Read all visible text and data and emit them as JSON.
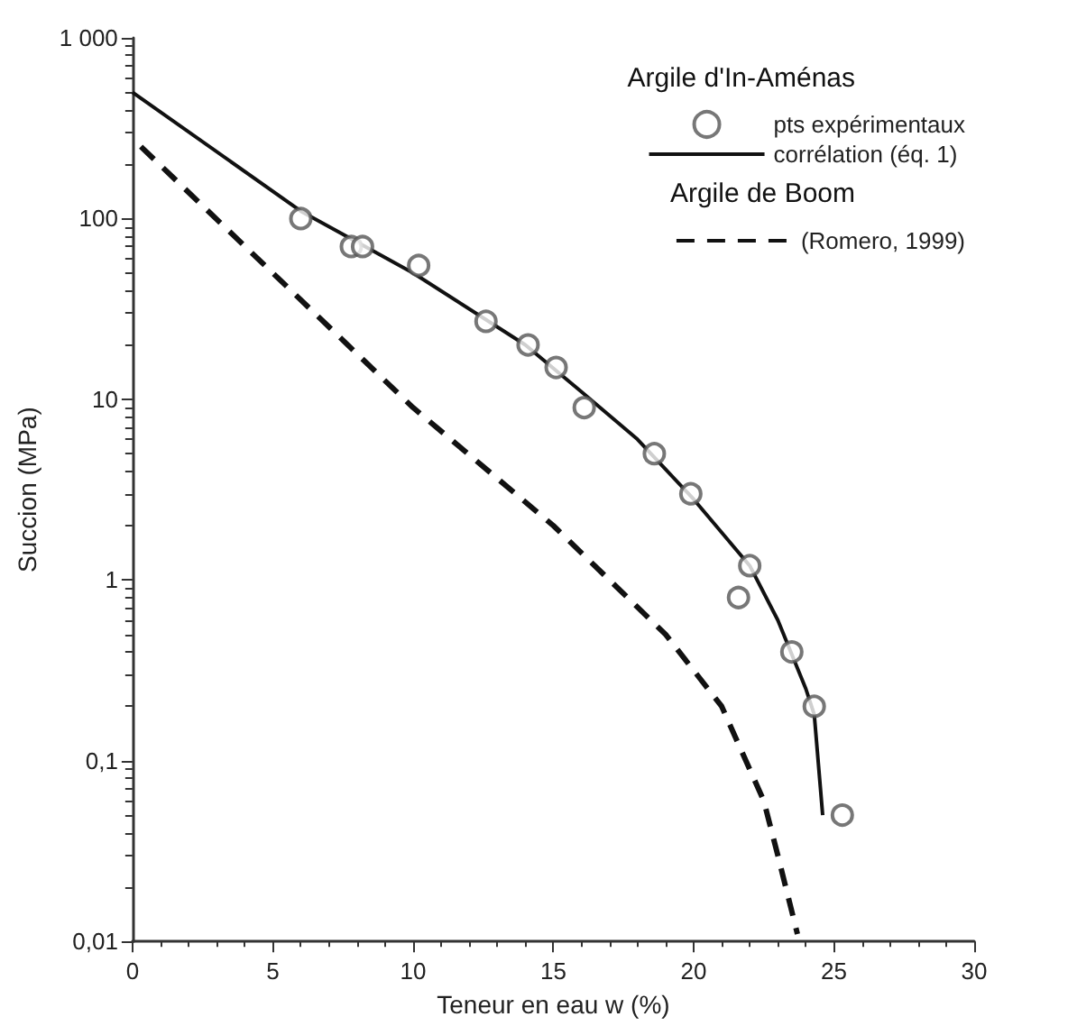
{
  "chart_data": {
    "type": "line",
    "xlabel": "Teneur en eau w (%)",
    "ylabel": "Succion (MPa)",
    "log": "y",
    "xlim": [
      0,
      30
    ],
    "xticks": [
      0,
      5,
      10,
      15,
      20,
      25,
      30
    ],
    "ylim": [
      0.01,
      1000
    ],
    "yticks": [
      {
        "value": 0.01,
        "label": "0,01"
      },
      {
        "value": 0.1,
        "label": "0,1"
      },
      1,
      10,
      100,
      {
        "value": 1000,
        "label": "1 000"
      }
    ],
    "grid": false,
    "legend": "top right",
    "annotations": [
      "Argile d'In-Aménas",
      "Argile de Boom"
    ],
    "series": [
      {
        "name": "pts expérimentaux",
        "type": "scatter",
        "marker": "circle",
        "color": "#555555",
        "x": [
          6,
          7.8,
          8.2,
          10.2,
          12.6,
          14.1,
          15.1,
          16.1,
          18.6,
          19.9,
          21.6,
          22,
          23.5,
          24.3,
          25.3
        ],
        "values": [
          100,
          70,
          70,
          55,
          27,
          20,
          15,
          9,
          5,
          3,
          0.8,
          1.2,
          0.4,
          0.2,
          0.05
        ]
      },
      {
        "name": "corrélation (éq. 1)",
        "line_style": "solid",
        "color": "#111111",
        "x": [
          0,
          6,
          10,
          14,
          16,
          18,
          20,
          22,
          23,
          24,
          24.3,
          24.6
        ],
        "values": [
          500,
          110,
          50,
          20,
          11,
          6,
          2.8,
          1.2,
          0.6,
          0.25,
          0.18,
          0.05
        ]
      },
      {
        "name": "(Romero, 1999)",
        "line_style": "dashed",
        "color": "#111111",
        "x": [
          0.3,
          5,
          10,
          15,
          19,
          21,
          22.5,
          23,
          23.7
        ],
        "values": [
          250,
          50,
          9,
          2,
          0.5,
          0.2,
          0.06,
          0.03,
          0.011
        ]
      }
    ]
  }
}
